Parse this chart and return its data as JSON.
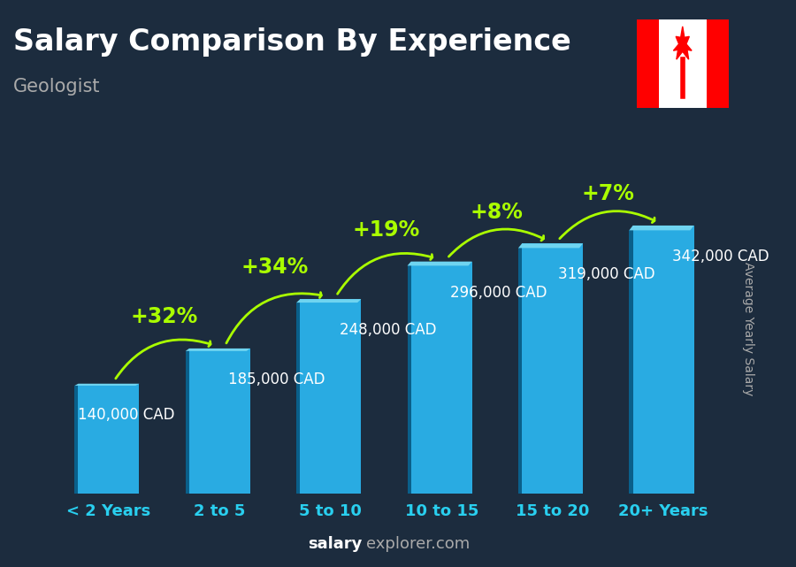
{
  "title": "Salary Comparison By Experience",
  "subtitle": "Geologist",
  "ylabel": "Average Yearly Salary",
  "watermark_salary": "salary",
  "watermark_explorer": "explorer.com",
  "categories": [
    "< 2 Years",
    "2 to 5",
    "5 to 10",
    "10 to 15",
    "15 to 20",
    "20+ Years"
  ],
  "values": [
    140000,
    185000,
    248000,
    296000,
    319000,
    342000
  ],
  "value_labels": [
    "140,000 CAD",
    "185,000 CAD",
    "248,000 CAD",
    "296,000 CAD",
    "319,000 CAD",
    "342,000 CAD"
  ],
  "pct_changes": [
    null,
    "+32%",
    "+34%",
    "+19%",
    "+8%",
    "+7%"
  ],
  "bar_color": "#29ABE2",
  "bar_edge_color": "#1A8BBF",
  "bar_dark_side": "#0A5F8A",
  "bar_top_color": "#6FD4F0",
  "background_color": "#1C2C3E",
  "title_color": "#FFFFFF",
  "subtitle_color": "#AAAAAA",
  "label_color": "#FFFFFF",
  "pct_color": "#AAFF00",
  "arrow_color": "#AAFF00",
  "xtick_color": "#29CFEF",
  "watermark_color": "#AAAAAA",
  "watermark_bold_color": "#FFFFFF",
  "ylim": [
    0,
    420000
  ],
  "title_fontsize": 24,
  "subtitle_fontsize": 15,
  "label_fontsize": 12,
  "pct_fontsize": 17,
  "xtick_fontsize": 13,
  "ylabel_fontsize": 10
}
